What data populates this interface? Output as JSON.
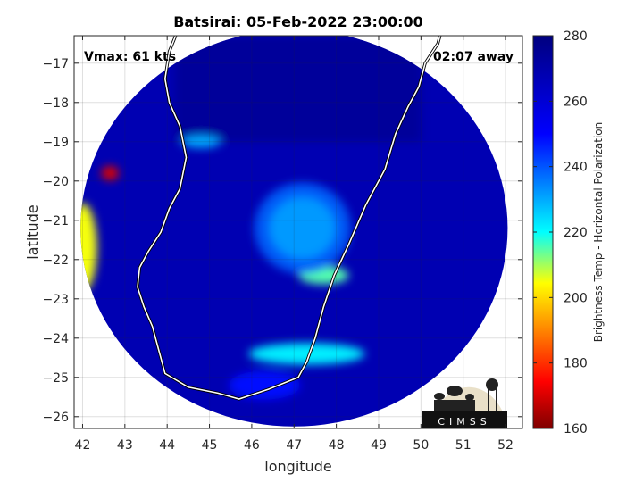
{
  "chart_data": {
    "type": "heatmap",
    "title": "Batsirai: 05-Feb-2022 23:00:00",
    "annotation_left": "Vmax: 61 kts",
    "annotation_right": "02:07 away",
    "xlabel": "longitude",
    "ylabel": "latitude",
    "xlim": [
      41.8,
      52.4
    ],
    "ylim": [
      -26.3,
      -16.3
    ],
    "x_ticks": [
      42,
      43,
      44,
      45,
      46,
      47,
      48,
      49,
      50,
      51,
      52
    ],
    "y_ticks": [
      -17,
      -18,
      -19,
      -20,
      -21,
      -22,
      -23,
      -24,
      -25,
      -26
    ],
    "grid": true,
    "colorbar": {
      "label": "Brightness Temp - Horizontal Polarization",
      "range": [
        160,
        280
      ],
      "ticks": [
        160,
        180,
        200,
        220,
        240,
        260,
        280
      ],
      "colormap": [
        "#7f0000",
        "#ff0000",
        "#ffff00",
        "#00ffff",
        "#0000ff",
        "#00007f"
      ]
    },
    "swath": {
      "center": [
        47.0,
        -21.2
      ],
      "radius_deg": 5.05,
      "background_value": 268
    },
    "features": [
      {
        "name": "warm ocean left edge",
        "lon": 42.0,
        "lat": -21.7,
        "value": 205
      },
      {
        "name": "hot spot",
        "lon": 42.65,
        "lat": -19.8,
        "value": 170
      },
      {
        "name": "eye ring band",
        "lon": 47.2,
        "lat": -21.2,
        "value": 232
      },
      {
        "name": "inner spiral band",
        "lon": 47.7,
        "lat": -22.4,
        "value": 215
      },
      {
        "name": "southern rainband",
        "lon": 47.3,
        "lat": -24.4,
        "value": 222
      },
      {
        "name": "northern band",
        "lon": 44.8,
        "lat": -19.0,
        "value": 230
      },
      {
        "name": "land warm area south",
        "lon": 46.3,
        "lat": -25.2,
        "value": 248
      }
    ],
    "coastline": [
      [
        44.2,
        -16.3
      ],
      [
        44.05,
        -16.7
      ],
      [
        43.95,
        -17.4
      ],
      [
        44.05,
        -18.0
      ],
      [
        44.3,
        -18.6
      ],
      [
        44.45,
        -19.4
      ],
      [
        44.3,
        -20.2
      ],
      [
        44.05,
        -20.7
      ],
      [
        43.85,
        -21.3
      ],
      [
        43.55,
        -21.8
      ],
      [
        43.35,
        -22.2
      ],
      [
        43.3,
        -22.7
      ],
      [
        43.45,
        -23.2
      ],
      [
        43.65,
        -23.7
      ],
      [
        43.8,
        -24.3
      ],
      [
        43.95,
        -24.9
      ],
      [
        44.5,
        -25.25
      ],
      [
        45.2,
        -25.4
      ],
      [
        45.7,
        -25.55
      ],
      [
        46.4,
        -25.3
      ],
      [
        47.1,
        -25.0
      ],
      [
        47.3,
        -24.6
      ],
      [
        47.5,
        -24.0
      ],
      [
        47.7,
        -23.2
      ],
      [
        47.95,
        -22.4
      ],
      [
        48.3,
        -21.6
      ],
      [
        48.7,
        -20.6
      ],
      [
        49.15,
        -19.7
      ],
      [
        49.4,
        -18.8
      ],
      [
        49.7,
        -18.1
      ],
      [
        49.95,
        -17.6
      ],
      [
        50.1,
        -17.0
      ],
      [
        50.4,
        -16.5
      ],
      [
        50.45,
        -16.3
      ]
    ]
  },
  "logo": {
    "text": "CIMSS"
  }
}
